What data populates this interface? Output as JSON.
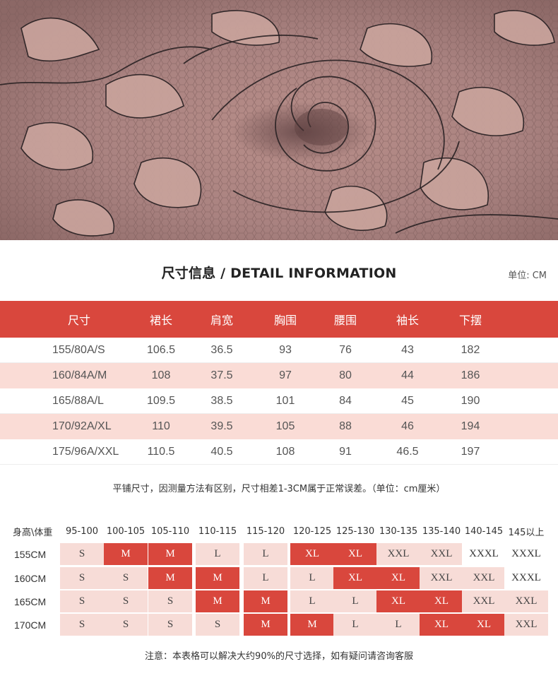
{
  "title": "尺寸信息 / DETAIL INFORMATION",
  "unit_label": "单位: CM",
  "size_table": {
    "headers": [
      "尺寸",
      "裙长",
      "肩宽",
      "胸围",
      "腰围",
      "袖长",
      "下摆"
    ],
    "rows": [
      [
        "155/80A/S",
        "106.5",
        "36.5",
        "93",
        "76",
        "43",
        "182"
      ],
      [
        "160/84A/M",
        "108",
        "37.5",
        "97",
        "80",
        "44",
        "186"
      ],
      [
        "165/88A/L",
        "109.5",
        "38.5",
        "101",
        "84",
        "45",
        "190"
      ],
      [
        "170/92A/XL",
        "110",
        "39.5",
        "105",
        "88",
        "46",
        "194"
      ],
      [
        "175/96A/XXL",
        "110.5",
        "40.5",
        "108",
        "91",
        "46.5",
        "197"
      ]
    ]
  },
  "measure_note": "平铺尺寸，因测量方法有区别，尺寸相差1-3CM属于正常误差。（单位：cm厘米）",
  "fit_grid": {
    "corner_label": "身高\\体重",
    "weight_headers": [
      "95-100",
      "100-105",
      "105-110",
      "110-115",
      "115-120",
      "120-125",
      "125-130",
      "130-135",
      "135-140",
      "140-145",
      "145以上"
    ],
    "rows": [
      {
        "height": "155CM",
        "sizes": [
          "S",
          "M",
          "M",
          "L",
          "L",
          "XL",
          "XL",
          "XXL",
          "XXL",
          "XXXL",
          "XXXL"
        ],
        "styles": [
          "pink",
          "red",
          "red",
          "pink",
          "pink",
          "red",
          "red",
          "pink",
          "pink",
          "white",
          "white"
        ]
      },
      {
        "height": "160CM",
        "sizes": [
          "S",
          "S",
          "M",
          "M",
          "L",
          "L",
          "XL",
          "XL",
          "XXL",
          "XXL",
          "XXXL"
        ],
        "styles": [
          "pink",
          "pink",
          "red",
          "red",
          "pink",
          "pink",
          "red",
          "red",
          "pink",
          "pink",
          "white"
        ]
      },
      {
        "height": "165CM",
        "sizes": [
          "S",
          "S",
          "S",
          "M",
          "M",
          "L",
          "L",
          "XL",
          "XL",
          "XXL",
          "XXL"
        ],
        "styles": [
          "pink",
          "pink",
          "pink",
          "red",
          "red",
          "pink",
          "pink",
          "red",
          "red",
          "pink",
          "pink"
        ]
      },
      {
        "height": "170CM",
        "sizes": [
          "S",
          "S",
          "S",
          "S",
          "M",
          "M",
          "L",
          "L",
          "XL",
          "XL",
          "XXL"
        ],
        "styles": [
          "pink",
          "pink",
          "pink",
          "pink",
          "red",
          "red",
          "pink",
          "pink",
          "red",
          "red",
          "pink"
        ]
      }
    ]
  },
  "footer_note": "注意：本表格可以解决大约90%的尺寸选择，如有疑问请咨询客服",
  "colors": {
    "accent": "#d9473d",
    "row_alt": "#fadcd6",
    "lace_base": "#a57e7b",
    "lace_line": "#2a2224"
  }
}
